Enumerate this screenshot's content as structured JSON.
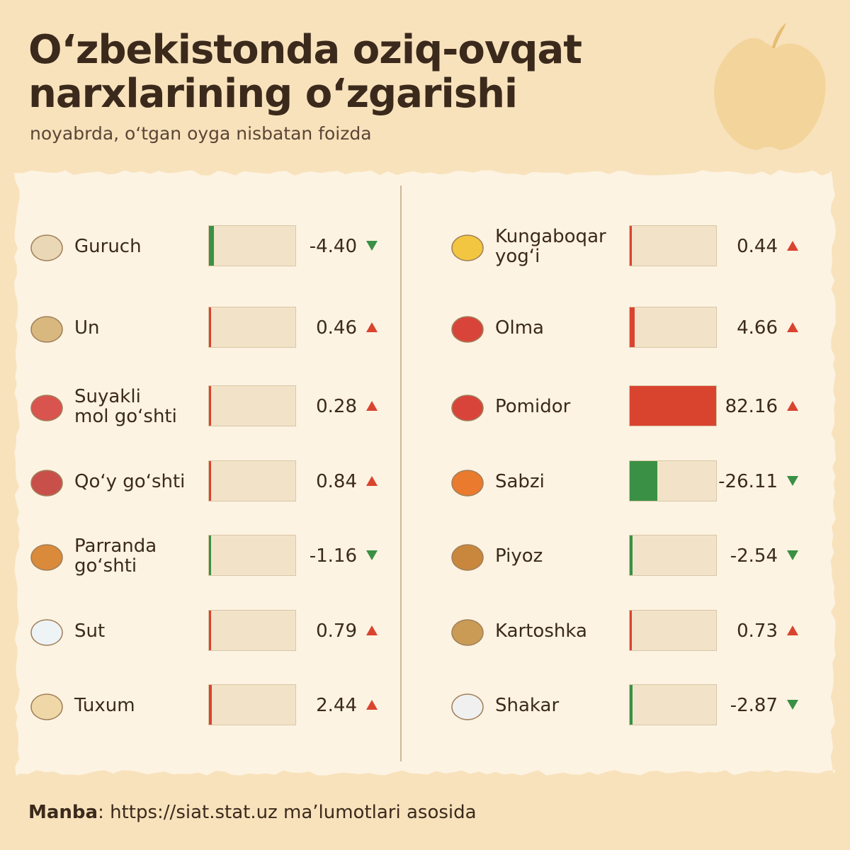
{
  "chart_data": {
    "type": "bar",
    "title": "O‘zbekistonda oziq-ovqat narxlarining o‘zgarishi",
    "subtitle": "noyabrda, o‘tgan oyga nisbatan foizda",
    "categories": [
      "Guruch",
      "Un",
      "Suyakli\nmol go‘shti",
      "Qo‘y go‘shti",
      "Parranda\ngo‘shti",
      "Sut",
      "Tuxum",
      "Kungaboqar\nyog‘i",
      "Olma",
      "Pomidor",
      "Sabzi",
      "Piyoz",
      "Kartoshka",
      "Shakar"
    ],
    "values": [
      -4.4,
      0.46,
      0.28,
      0.84,
      -1.16,
      0.79,
      2.44,
      0.44,
      4.66,
      82.16,
      -26.11,
      -2.54,
      0.73,
      -2.87
    ],
    "value_labels": [
      "-4.40",
      "0.46",
      "0.28",
      "0.84",
      "-1.16",
      "0.79",
      "2.44",
      "0.44",
      "4.66",
      "82.16",
      "-26.11",
      "-2.54",
      "0.73",
      "-2.87"
    ],
    "colors": {
      "increase": "#d9442f",
      "decrease": "#3a9044"
    },
    "source": {
      "label": "Manba",
      "text": ": https://siat.stat.uz ma’lumotlari asosida"
    }
  }
}
